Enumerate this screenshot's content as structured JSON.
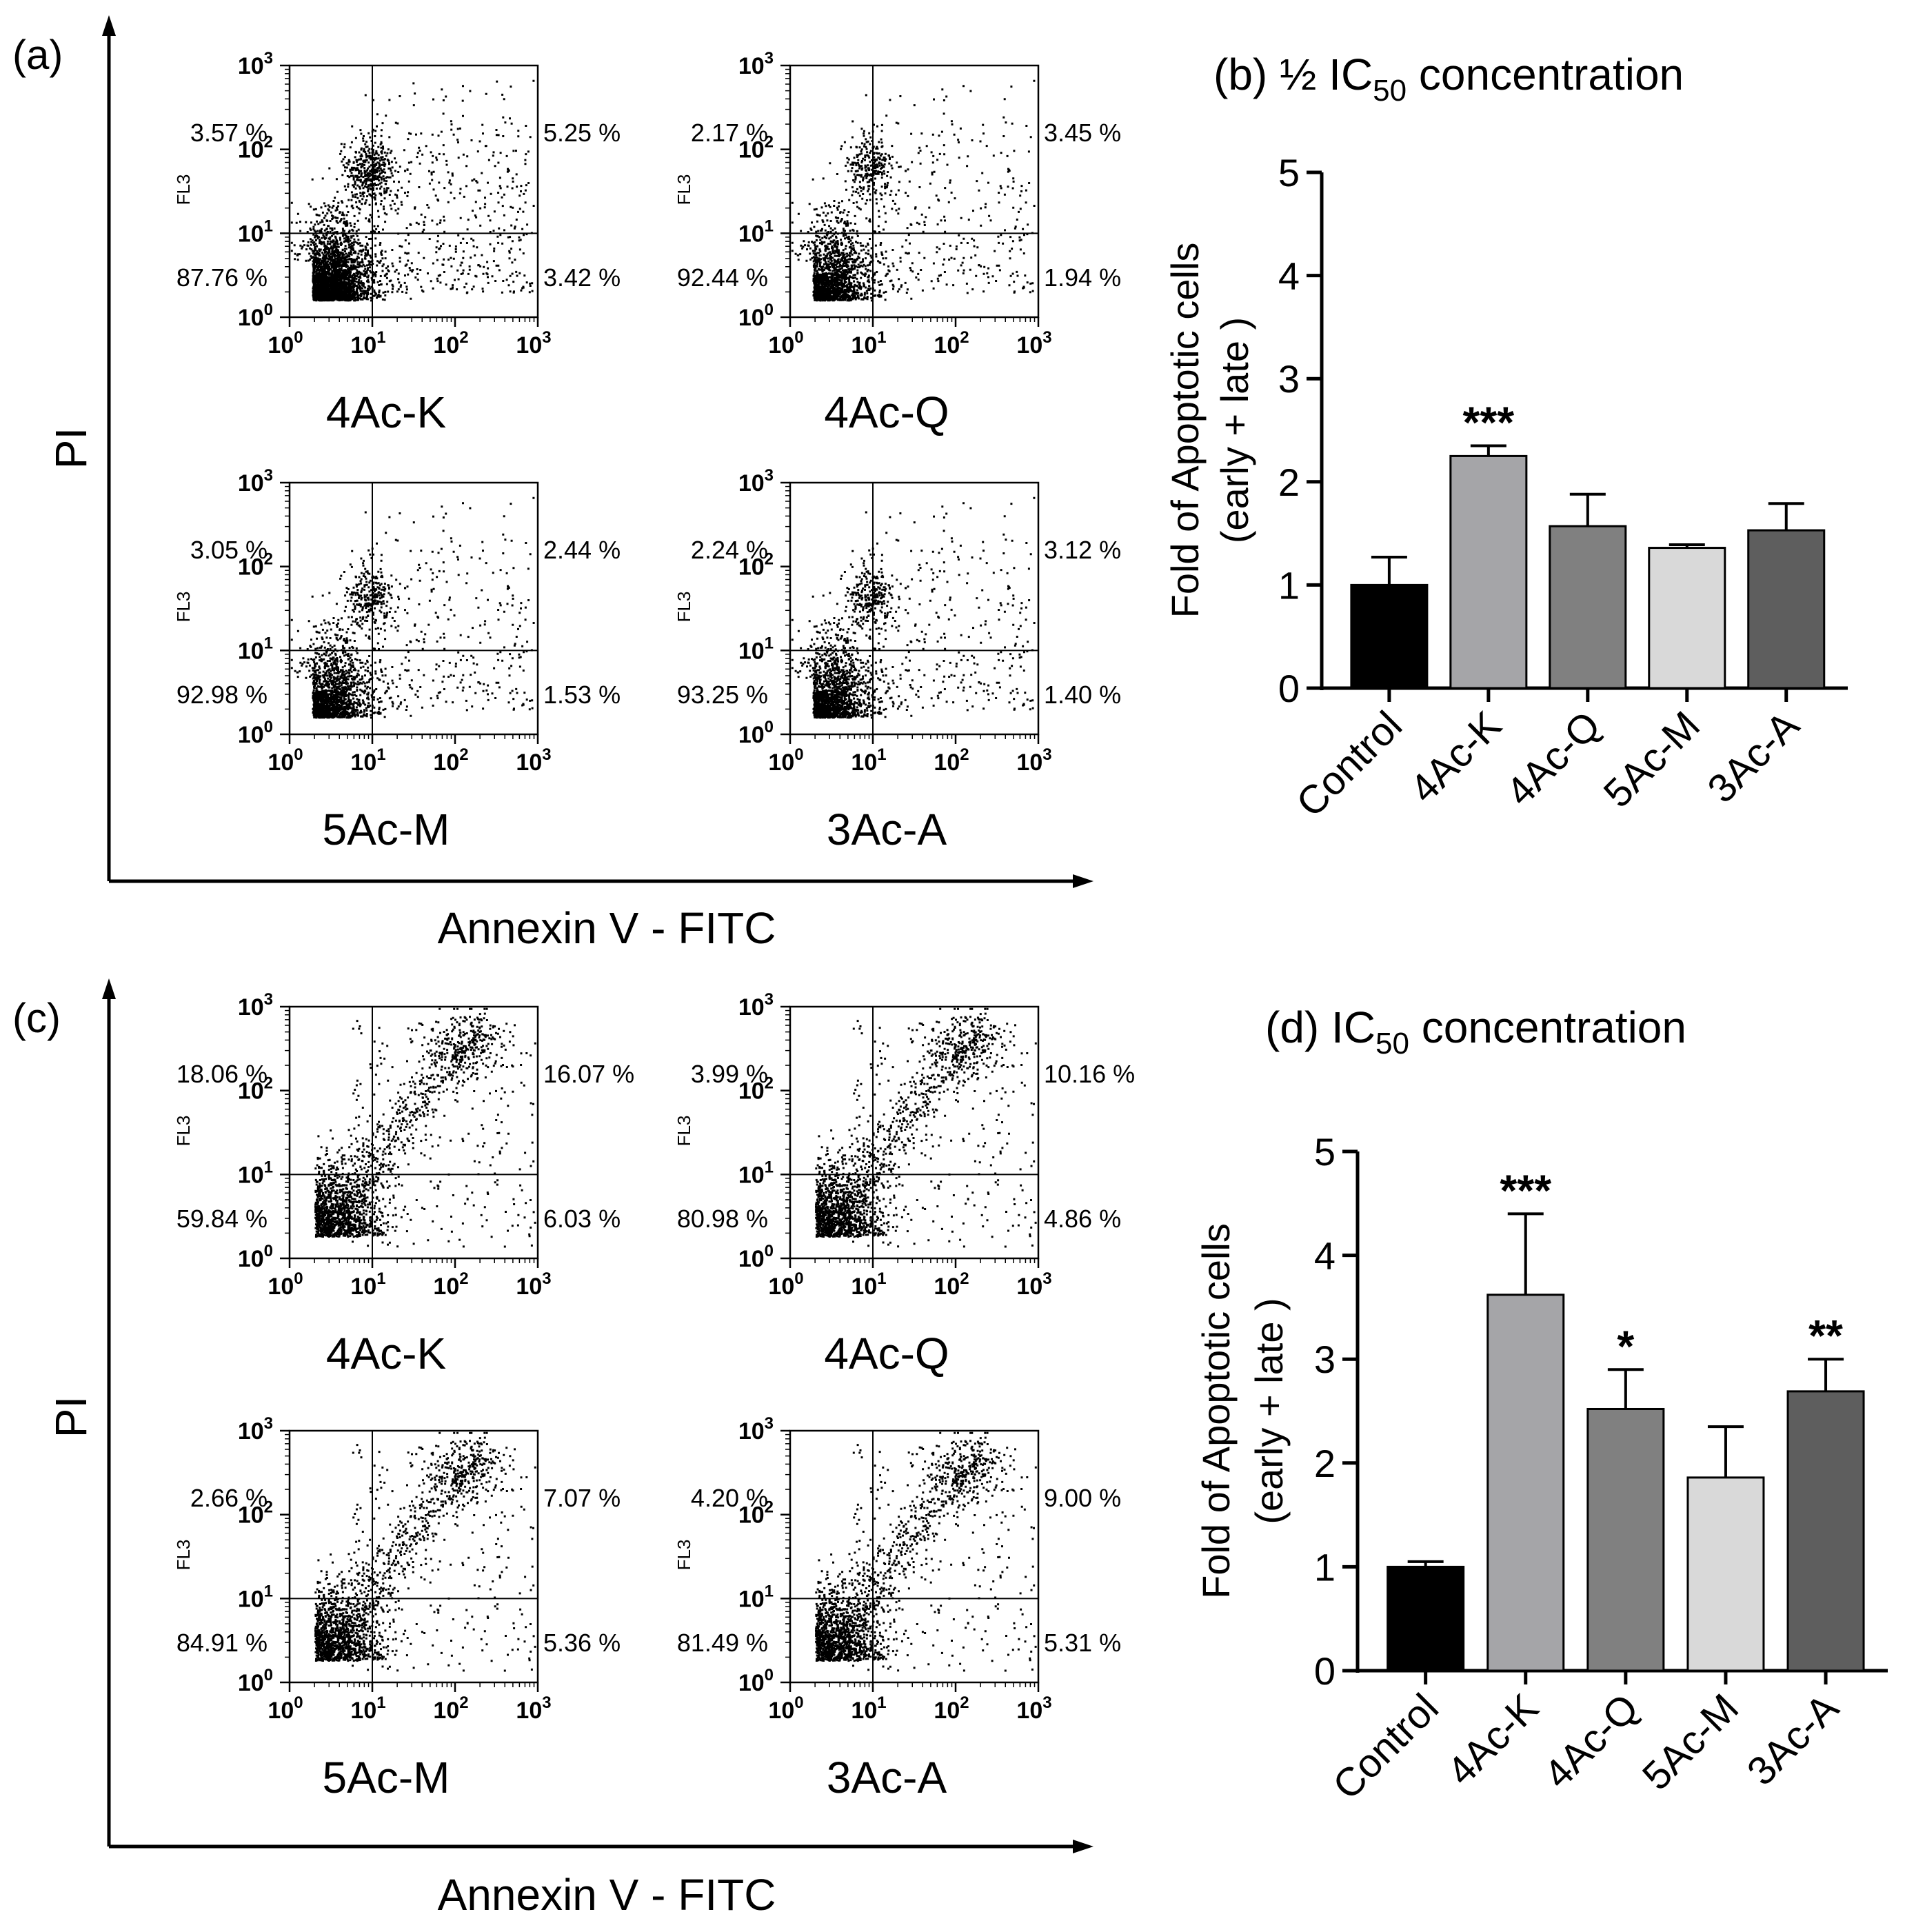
{
  "chart_data": [
    {
      "panel": "(a)",
      "type": "scatter",
      "description_type": "flow-cytometry quadrant dot plots",
      "xlabel": "Annexin V - FITC",
      "ylabel": "PI",
      "plot_ylabel": "FL3",
      "xscale": "log",
      "yscale": "log",
      "xlim": [
        1,
        1000
      ],
      "ylim": [
        1,
        1000
      ],
      "gate": {
        "x": 10,
        "y": 10
      },
      "ticks": {
        "base": "10",
        "exponents": [
          "0",
          "1",
          "2",
          "3"
        ]
      },
      "samples": [
        {
          "name": "4Ac-K",
          "ul": "3.57 %",
          "ur": "5.25 %",
          "ll": "87.76 %",
          "lr": "3.42 %",
          "cluster": "dual",
          "sep": 0.58
        },
        {
          "name": "4Ac-Q",
          "ul": "2.17 %",
          "ur": "3.45 %",
          "ll": "92.44 %",
          "lr": "1.94 %",
          "cluster": "dual",
          "sep": 0.6
        },
        {
          "name": "5Ac-M",
          "ul": "3.05 %",
          "ur": "2.44 %",
          "ll": "92.98 %",
          "lr": "1.53 %",
          "cluster": "dual",
          "sep": 0.55
        },
        {
          "name": "3Ac-A",
          "ul": "2.24 %",
          "ur": "3.12 %",
          "ll": "93.25 %",
          "lr": "1.40 %",
          "cluster": "dual",
          "sep": 0.55
        }
      ]
    },
    {
      "panel": "(b)",
      "type": "bar",
      "title_prefix": "(b) ½ IC",
      "title_sub": "50",
      "title_suffix": " concentration",
      "ylabel_line1": "Fold of Apoptotic cells",
      "ylabel_line2": "(early + late )",
      "categories": [
        "Control",
        "4Ac-K",
        "4Ac-Q",
        "5Ac-M",
        "3Ac-A"
      ],
      "values": [
        1.0,
        2.25,
        1.57,
        1.36,
        1.53
      ],
      "errors": [
        0.27,
        0.1,
        0.31,
        0.03,
        0.26
      ],
      "significance": [
        "",
        "***",
        "",
        "",
        ""
      ],
      "colors": [
        "#000000",
        "#a5a5a8",
        "#808080",
        "#d9d9d9",
        "#5e5e5e"
      ],
      "ylim": [
        0,
        5
      ],
      "yticks": [
        "0",
        "1",
        "2",
        "3",
        "4",
        "5"
      ]
    },
    {
      "panel": "(c)",
      "type": "scatter",
      "description_type": "flow-cytometry quadrant dot plots",
      "xlabel": "Annexin V - FITC",
      "ylabel": "PI",
      "plot_ylabel": "FL3",
      "xscale": "log",
      "yscale": "log",
      "xlim": [
        1,
        1000
      ],
      "ylim": [
        1,
        1000
      ],
      "gate": {
        "x": 10,
        "y": 10
      },
      "ticks": {
        "base": "10",
        "exponents": [
          "0",
          "1",
          "2",
          "3"
        ]
      },
      "samples": [
        {
          "name": "4Ac-K",
          "ul": "18.06 %",
          "ur": "16.07 %",
          "ll": "59.84 %",
          "lr": "6.03 %",
          "cluster": "diag",
          "sep": 0.35
        },
        {
          "name": "4Ac-Q",
          "ul": "3.99 %",
          "ur": "10.16 %",
          "ll": "80.98 %",
          "lr": "4.86 %",
          "cluster": "diag",
          "sep": 0.5
        },
        {
          "name": "5Ac-M",
          "ul": "2.66 %",
          "ur": "7.07 %",
          "ll": "84.91 %",
          "lr": "5.36 %",
          "cluster": "diag",
          "sep": 0.52
        },
        {
          "name": "3Ac-A",
          "ul": "4.20 %",
          "ur": "9.00 %",
          "ll": "81.49 %",
          "lr": "5.31 %",
          "cluster": "diag",
          "sep": 0.52
        }
      ]
    },
    {
      "panel": "(d)",
      "type": "bar",
      "title_prefix": "(d) IC",
      "title_sub": "50",
      "title_suffix": " concentration",
      "ylabel_line1": "Fold of Apoptotic cells",
      "ylabel_line2": "(early + late )",
      "categories": [
        "Control",
        "4Ac-K",
        "4Ac-Q",
        "5Ac-M",
        "3Ac-A"
      ],
      "values": [
        1.0,
        3.62,
        2.52,
        1.86,
        2.69
      ],
      "errors": [
        0.05,
        0.78,
        0.38,
        0.49,
        0.31
      ],
      "significance": [
        "",
        "***",
        "*",
        "",
        "**"
      ],
      "colors": [
        "#000000",
        "#a5a5a8",
        "#808080",
        "#d9d9d9",
        "#5e5e5e"
      ],
      "ylim": [
        0,
        5
      ],
      "yticks": [
        "0",
        "1",
        "2",
        "3",
        "4",
        "5"
      ]
    }
  ]
}
